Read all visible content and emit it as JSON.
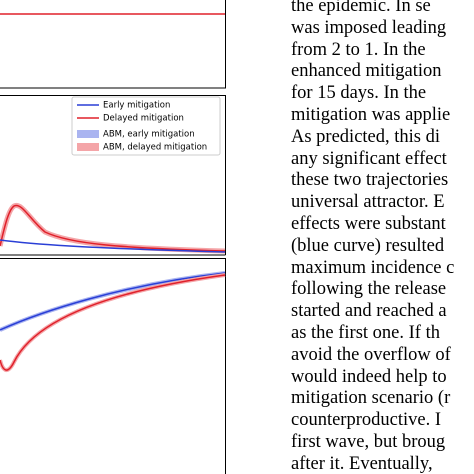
{
  "legend": [
    "Early mitigation",
    "Delayed mitigation",
    "ABM, early mitigation",
    "ABM, delayed mitigation"
  ],
  "text_lines": [
    "the epidemic. In se",
    "was imposed leading",
    "from 2 to 1. In the",
    "enhanced mitigation",
    "for 15 days. In the",
    "mitigation was applie",
    "As predicted, this di",
    "any significant effect",
    "these two trajectories",
    "universal attractor. E",
    "effects were substant",
    "(blue curve) resulted",
    "maximum incidence c",
    "following the release",
    "started and reached a",
    "as the first one. If th",
    "avoid the overflow of",
    "would indeed help to",
    "mitigation scenario (r",
    "counterproductive. I",
    "first wave, but broug",
    "after it. Eventually,"
  ]
}
